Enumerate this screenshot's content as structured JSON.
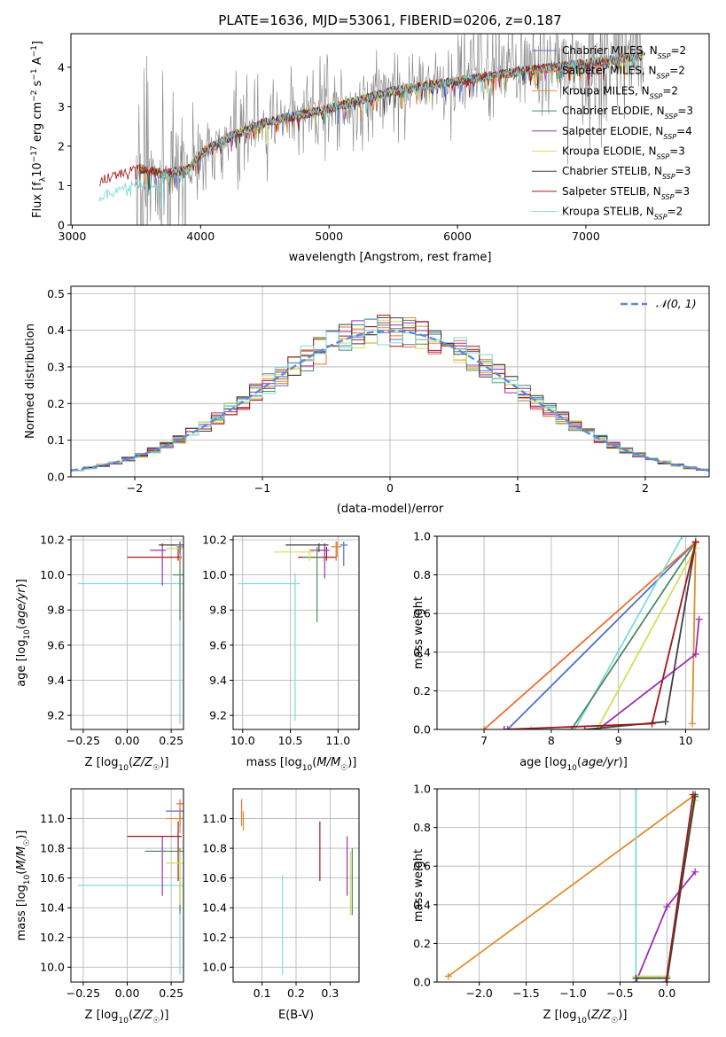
{
  "page_title": "PLATE=1636, MJD=53061, FIBERID=0206, z=0.187",
  "colors": {
    "Chabrier MILES": "#5470c6",
    "Salpeter MILES": "#ee6c2f",
    "Kroupa MILES": "#e08d30",
    "Chabrier ELODIE": "#4e8a5f",
    "Salpeter ELODIE": "#9c2fb5",
    "Kroupa ELODIE": "#d0e05a",
    "Chabrier STELIB": "#404040",
    "Salpeter STELIB": "#a01818",
    "Kroupa STELIB": "#7fdada",
    "data": "#808080",
    "normal": "#5b8dd6"
  },
  "chart_data": [
    {
      "id": "spectrum",
      "type": "line",
      "title": "PLATE=1636, MJD=53061, FIBERID=0206, z=0.187",
      "xlabel": "wavelength [Angstrom, rest frame]",
      "ylabel": "Flux [f_λ 10^-17 erg cm^-2 s^-1 A^-1]",
      "xlim": [
        2990,
        7960
      ],
      "ylim": [
        0,
        4.85
      ],
      "xticks": [
        3000,
        4000,
        5000,
        6000,
        7000
      ],
      "yticks": [
        0,
        1,
        2,
        3,
        4
      ],
      "grid": false,
      "legend": "top-right",
      "legend_entries": [
        {
          "name": "Chabrier MILES",
          "n": "2",
          "color": "#5470c6"
        },
        {
          "name": "Salpeter MILES",
          "n": "2",
          "color": "#ee6c2f"
        },
        {
          "name": "Kroupa MILES",
          "n": "2",
          "color": "#e08d30"
        },
        {
          "name": "Chabrier ELODIE",
          "n": "3",
          "color": "#4e8a5f"
        },
        {
          "name": "Salpeter ELODIE",
          "n": "4",
          "color": "#9c2fb5"
        },
        {
          "name": "Kroupa ELODIE",
          "n": "3",
          "color": "#d0e05a"
        },
        {
          "name": "Chabrier STELIB",
          "n": "3",
          "color": "#404040"
        },
        {
          "name": "Salpeter STELIB",
          "n": "3",
          "color": "#a01818"
        },
        {
          "name": "Kroupa STELIB",
          "n": "2",
          "color": "#7fdada"
        }
      ],
      "model_trend": {
        "x": [
          3200,
          3500,
          3700,
          3900,
          4000,
          4200,
          4500,
          5000,
          5500,
          6000,
          6500,
          7000,
          7450
        ],
        "y": [
          1.1,
          1.45,
          1.3,
          1.4,
          1.8,
          2.2,
          2.6,
          2.95,
          3.4,
          3.65,
          3.9,
          4.1,
          4.3
        ]
      }
    },
    {
      "id": "residuals",
      "type": "line",
      "xlabel": "(data-model)/error",
      "ylabel": "Normed distribution",
      "xlim": [
        -2.5,
        2.5
      ],
      "ylim": [
        0,
        0.52
      ],
      "xticks": [
        -2,
        -1,
        0,
        1,
        2
      ],
      "xtick_labels": [
        "−2",
        "−1",
        "0",
        "1",
        "2"
      ],
      "yticks": [
        0.0,
        0.1,
        0.2,
        0.3,
        0.4,
        0.5
      ],
      "ytick_labels": [
        "0.0",
        "0.1",
        "0.2",
        "0.3",
        "0.4",
        "0.5"
      ],
      "grid": true,
      "legend": "top-right",
      "legend_label": "𝒩(0, 1)",
      "curve": "standard normal pdf"
    },
    {
      "id": "age-vs-Z",
      "type": "scatter",
      "xlabel": "Z [log10(Z/Z☉)]",
      "ylabel": "age [log10(age/yr)]",
      "xlim": [
        -0.32,
        0.32
      ],
      "ylim": [
        9.12,
        10.22
      ],
      "xticks": [
        -0.25,
        0.0,
        0.25
      ],
      "xtick_labels": [
        "−0.25",
        "0.00",
        "0.25"
      ],
      "yticks": [
        9.2,
        9.4,
        9.6,
        9.8,
        10.0,
        10.2
      ],
      "ytick_labels": [
        "9.2",
        "9.4",
        "9.6",
        "9.8",
        "10.0",
        "10.2"
      ],
      "grid": true,
      "points": [
        {
          "model": "Kroupa STELIB",
          "x": 0.3,
          "xerr": 0.58,
          "y": 9.95,
          "yerr": 0.06,
          "yerr_low": 0.8
        },
        {
          "model": "Salpeter STELIB",
          "x": 0.29,
          "xerr": 0.29,
          "y": 10.1,
          "yerr": 0.06,
          "yerr_low": 0.02
        },
        {
          "model": "Salpeter ELODIE",
          "x": 0.2,
          "xerr": 0.07,
          "y": 10.14,
          "yerr": 0.04,
          "yerr_low": 0.2
        },
        {
          "model": "Chabrier ELODIE",
          "x": 0.3,
          "xerr": 0.04,
          "y": 10.0,
          "yerr": 0.17,
          "yerr_low": 0.26
        },
        {
          "model": "Chabrier STELIB",
          "x": 0.3,
          "xerr": 0.12,
          "y": 10.17,
          "yerr": 0.01,
          "yerr_low": 0.04
        },
        {
          "model": "Kroupa ELODIE",
          "x": 0.3,
          "xerr": 0.08,
          "y": 10.15,
          "yerr": 0.02,
          "yerr_low": 0.04
        },
        {
          "model": "Salpeter MILES",
          "x": 0.3,
          "xerr": 0.02,
          "y": 10.16,
          "yerr": 0.03,
          "yerr_low": 0.1
        },
        {
          "model": "Kroupa MILES",
          "x": 0.3,
          "xerr": 0.02,
          "y": 10.16,
          "yerr": 0.03,
          "yerr_low": 0.08
        },
        {
          "model": "Chabrier MILES",
          "x": 0.3,
          "xerr": 0.02,
          "y": 10.17,
          "yerr": 0.02,
          "yerr_low": 0.05
        }
      ]
    },
    {
      "id": "age-vs-mass",
      "type": "scatter",
      "xlabel": "mass [log10(M/M☉)]",
      "xlim": [
        9.9,
        11.22
      ],
      "ylim": [
        9.12,
        10.22
      ],
      "xticks": [
        10.0,
        10.5,
        11.0
      ],
      "xtick_labels": [
        "10.0",
        "10.5",
        "11.0"
      ],
      "yticks": [
        9.2,
        9.4,
        9.6,
        9.8,
        10.0,
        10.2
      ],
      "ytick_labels": [
        "9.2",
        "9.4",
        "9.6",
        "9.8",
        "10.0",
        "10.2"
      ],
      "grid": true,
      "points": [
        {
          "model": "Kroupa STELIB",
          "x": 10.55,
          "xerr": 0.6,
          "xerr_right": 0.05,
          "y": 9.95,
          "yerr": 0.06,
          "yerr_low": 0.78
        },
        {
          "model": "Salpeter STELIB",
          "x": 10.88,
          "xerr": 0.3,
          "xerr_right": 0.1,
          "y": 10.1,
          "yerr": 0.06,
          "yerr_low": 0.02
        },
        {
          "model": "Salpeter ELODIE",
          "x": 10.86,
          "xerr": 0.15,
          "xerr_right": 0.05,
          "y": 10.14,
          "yerr": 0.04,
          "yerr_low": 0.16
        },
        {
          "model": "Chabrier ELODIE",
          "x": 10.78,
          "xerr": 0.15,
          "xerr_right": 0.05,
          "y": 10.1,
          "yerr": 0.06,
          "yerr_low": 0.37
        },
        {
          "model": "Kroupa ELODIE",
          "x": 10.7,
          "xerr": 0.37,
          "xerr_right": 0.05,
          "y": 10.13,
          "yerr": 0.02,
          "yerr_low": 0.05
        },
        {
          "model": "Chabrier STELIB",
          "x": 10.8,
          "xerr": 0.35,
          "xerr_right": 0.1,
          "y": 10.17,
          "yerr": 0.01,
          "yerr_low": 0.04
        },
        {
          "model": "Salpeter MILES",
          "x": 10.98,
          "xerr": 0.05,
          "xerr_right": 0.05,
          "y": 10.16,
          "yerr": 0.03,
          "yerr_low": 0.08
        },
        {
          "model": "Kroupa MILES",
          "x": 10.99,
          "xerr": 0.05,
          "xerr_right": 0.05,
          "y": 10.16,
          "yerr": 0.03,
          "yerr_low": 0.06
        },
        {
          "model": "Chabrier MILES",
          "x": 11.06,
          "xerr": 0.04,
          "xerr_right": 0.04,
          "y": 10.17,
          "yerr": 0.02,
          "yerr_low": 0.12
        }
      ]
    },
    {
      "id": "mass-weight-vs-age",
      "type": "line",
      "xlabel": "age [log10(age/yr)]",
      "ylabel": "mass weight",
      "xlim": [
        6.3,
        10.35
      ],
      "ylim": [
        0,
        1.0
      ],
      "xticks": [
        7,
        8,
        9,
        10
      ],
      "xtick_labels": [
        "7",
        "8",
        "9",
        "10"
      ],
      "yticks": [
        0.0,
        0.2,
        0.4,
        0.6,
        0.8,
        1.0
      ],
      "ytick_labels": [
        "0.0",
        "0.2",
        "0.4",
        "0.6",
        "0.8",
        "1.0"
      ],
      "grid": true,
      "series": [
        {
          "model": "Chabrier MILES",
          "x": [
            7.35,
            10.15
          ],
          "y": [
            0.0,
            0.97
          ]
        },
        {
          "model": "Kroupa MILES",
          "x": [
            10.1,
            10.15
          ],
          "y": [
            0.03,
            0.97
          ]
        },
        {
          "model": "Salpeter MILES",
          "x": [
            7.0,
            10.15
          ],
          "y": [
            0.0,
            0.97
          ]
        },
        {
          "model": "Kroupa STELIB",
          "x": [
            7.7,
            8.35,
            9.95,
            10.15
          ],
          "y": [
            0.0,
            0.0,
            1.0,
            1.0
          ]
        },
        {
          "model": "Chabrier ELODIE",
          "x": [
            8.3,
            10.15
          ],
          "y": [
            0.0,
            0.97
          ]
        },
        {
          "model": "Salpeter ELODIE",
          "x": [
            8.7,
            10.15,
            10.2
          ],
          "y": [
            0.0,
            0.39,
            0.57
          ]
        },
        {
          "model": "Kroupa ELODIE",
          "x": [
            8.68,
            10.15
          ],
          "y": [
            0.0,
            0.94
          ]
        },
        {
          "model": "Chabrier STELIB",
          "x": [
            8.5,
            9.7,
            10.15
          ],
          "y": [
            0.0,
            0.04,
            0.97
          ]
        },
        {
          "model": "Salpeter STELIB",
          "x": [
            7.3,
            9.5,
            10.15
          ],
          "y": [
            0.0,
            0.03,
            0.97
          ]
        }
      ]
    },
    {
      "id": "mass-vs-Z",
      "type": "scatter",
      "xlabel": "Z [log10(Z/Z☉)]",
      "ylabel": "mass [log10(M/M☉)]",
      "xlim": [
        -0.32,
        0.32
      ],
      "ylim": [
        9.9,
        11.2
      ],
      "xticks": [
        -0.25,
        0.0,
        0.25
      ],
      "xtick_labels": [
        "−0.25",
        "0.00",
        "0.25"
      ],
      "yticks": [
        10.0,
        10.2,
        10.4,
        10.6,
        10.8,
        11.0
      ],
      "ytick_labels": [
        "10.0",
        "10.2",
        "10.4",
        "10.6",
        "10.8",
        "11.0"
      ],
      "grid": true,
      "points": [
        {
          "model": "Kroupa STELIB",
          "x": 0.3,
          "xerr": 0.58,
          "y": 10.55,
          "yerr": 0.05,
          "yerr_low": 0.6
        },
        {
          "model": "Salpeter STELIB",
          "x": 0.29,
          "xerr": 0.29,
          "y": 10.88,
          "yerr": 0.1,
          "yerr_low": 0.3
        },
        {
          "model": "Salpeter ELODIE",
          "x": 0.2,
          "xerr": 0.07,
          "y": 10.78,
          "yerr": 0.1,
          "yerr_low": 0.3
        },
        {
          "model": "Chabrier ELODIE",
          "x": 0.3,
          "xerr": 0.2,
          "y": 10.78,
          "yerr": 0.02,
          "yerr_low": 0.42
        },
        {
          "model": "Kroupa ELODIE",
          "x": 0.3,
          "xerr": 0.08,
          "y": 10.7,
          "yerr": 0.08,
          "yerr_low": 0.28
        },
        {
          "model": "Chabrier MILES",
          "x": 0.3,
          "xerr": 0.08,
          "y": 11.05,
          "yerr": 0.02,
          "yerr_low": 0.1
        },
        {
          "model": "Kroupa MILES",
          "x": 0.3,
          "xerr": 0.08,
          "y": 11.0,
          "yerr": 0.02,
          "yerr_low": 0.1
        },
        {
          "model": "Salpeter MILES",
          "x": 0.3,
          "xerr": 0.02,
          "y": 11.1,
          "yerr": 0.03,
          "yerr_low": 0.12
        }
      ]
    },
    {
      "id": "mass-vs-ebv",
      "type": "scatter",
      "xlabel": "E(B-V)",
      "xlim": [
        0.015,
        0.385
      ],
      "ylim": [
        9.9,
        11.2
      ],
      "xticks": [
        0.1,
        0.2,
        0.3
      ],
      "xtick_labels": [
        "0.1",
        "0.2",
        "0.3"
      ],
      "yticks": [
        10.0,
        10.2,
        10.4,
        10.6,
        10.8,
        11.0
      ],
      "ytick_labels": [
        "10.0",
        "10.2",
        "10.4",
        "10.6",
        "10.8",
        "11.0"
      ],
      "grid": true,
      "points": [
        {
          "model": "Salpeter MILES",
          "x": 0.04,
          "y": 11.05,
          "yerr": 0.08,
          "yerr_low": 0.1
        },
        {
          "model": "Kroupa MILES",
          "x": 0.045,
          "y": 11.0,
          "yerr": 0.05,
          "yerr_low": 0.08
        },
        {
          "model": "Kroupa STELIB",
          "x": 0.16,
          "y": 10.55,
          "yerr": 0.07,
          "yerr_low": 0.6
        },
        {
          "model": "Salpeter STELIB",
          "x": 0.27,
          "y": 10.88,
          "yerr": 0.1,
          "yerr_low": 0.3
        },
        {
          "model": "Salpeter ELODIE",
          "x": 0.35,
          "y": 10.78,
          "yerr": 0.1,
          "yerr_low": 0.3
        },
        {
          "model": "Kroupa ELODIE",
          "x": 0.36,
          "y": 10.7,
          "yerr": 0.08,
          "yerr_low": 0.35
        },
        {
          "model": "Chabrier ELODIE",
          "x": 0.365,
          "y": 10.6,
          "yerr": 0.2,
          "yerr_low": 0.25
        }
      ]
    },
    {
      "id": "mass-weight-vs-Z",
      "type": "line",
      "xlabel": "Z [log10(Z/Z☉)]",
      "ylabel": "mass weight",
      "xlim": [
        -2.45,
        0.45
      ],
      "ylim": [
        0,
        1.0
      ],
      "xticks": [
        -2.0,
        -1.5,
        -1.0,
        -0.5,
        0.0
      ],
      "xtick_labels": [
        "−2.0",
        "−1.5",
        "−1.0",
        "−0.5",
        "0.0"
      ],
      "yticks": [
        0.0,
        0.2,
        0.4,
        0.6,
        0.8,
        1.0
      ],
      "ytick_labels": [
        "0.0",
        "0.2",
        "0.4",
        "0.6",
        "0.8",
        "1.0"
      ],
      "grid": true,
      "series": [
        {
          "model": "Kroupa MILES",
          "x": [
            -2.33,
            0.3
          ],
          "y": [
            0.03,
            0.97
          ]
        },
        {
          "model": "Kroupa STELIB",
          "x": [
            -0.33,
            -0.33
          ],
          "y": [
            0.0,
            1.0
          ]
        },
        {
          "model": "Salpeter ELODIE",
          "x": [
            -0.33,
            0.0,
            0.3
          ],
          "y": [
            0.0,
            0.39,
            0.57
          ]
        },
        {
          "model": "Kroupa ELODIE",
          "x": [
            -0.33,
            0.0,
            0.3
          ],
          "y": [
            0.03,
            0.03,
            0.94
          ]
        },
        {
          "model": "Chabrier ELODIE",
          "x": [
            0.0,
            0.3
          ],
          "y": [
            0.0,
            0.97
          ]
        },
        {
          "model": "Chabrier STELIB",
          "x": [
            -0.33,
            0.0,
            0.3
          ],
          "y": [
            0.02,
            0.02,
            0.96
          ]
        },
        {
          "model": "Salpeter STELIB",
          "x": [
            -0.01,
            0.28
          ],
          "y": [
            0.0,
            0.97
          ]
        }
      ]
    }
  ]
}
